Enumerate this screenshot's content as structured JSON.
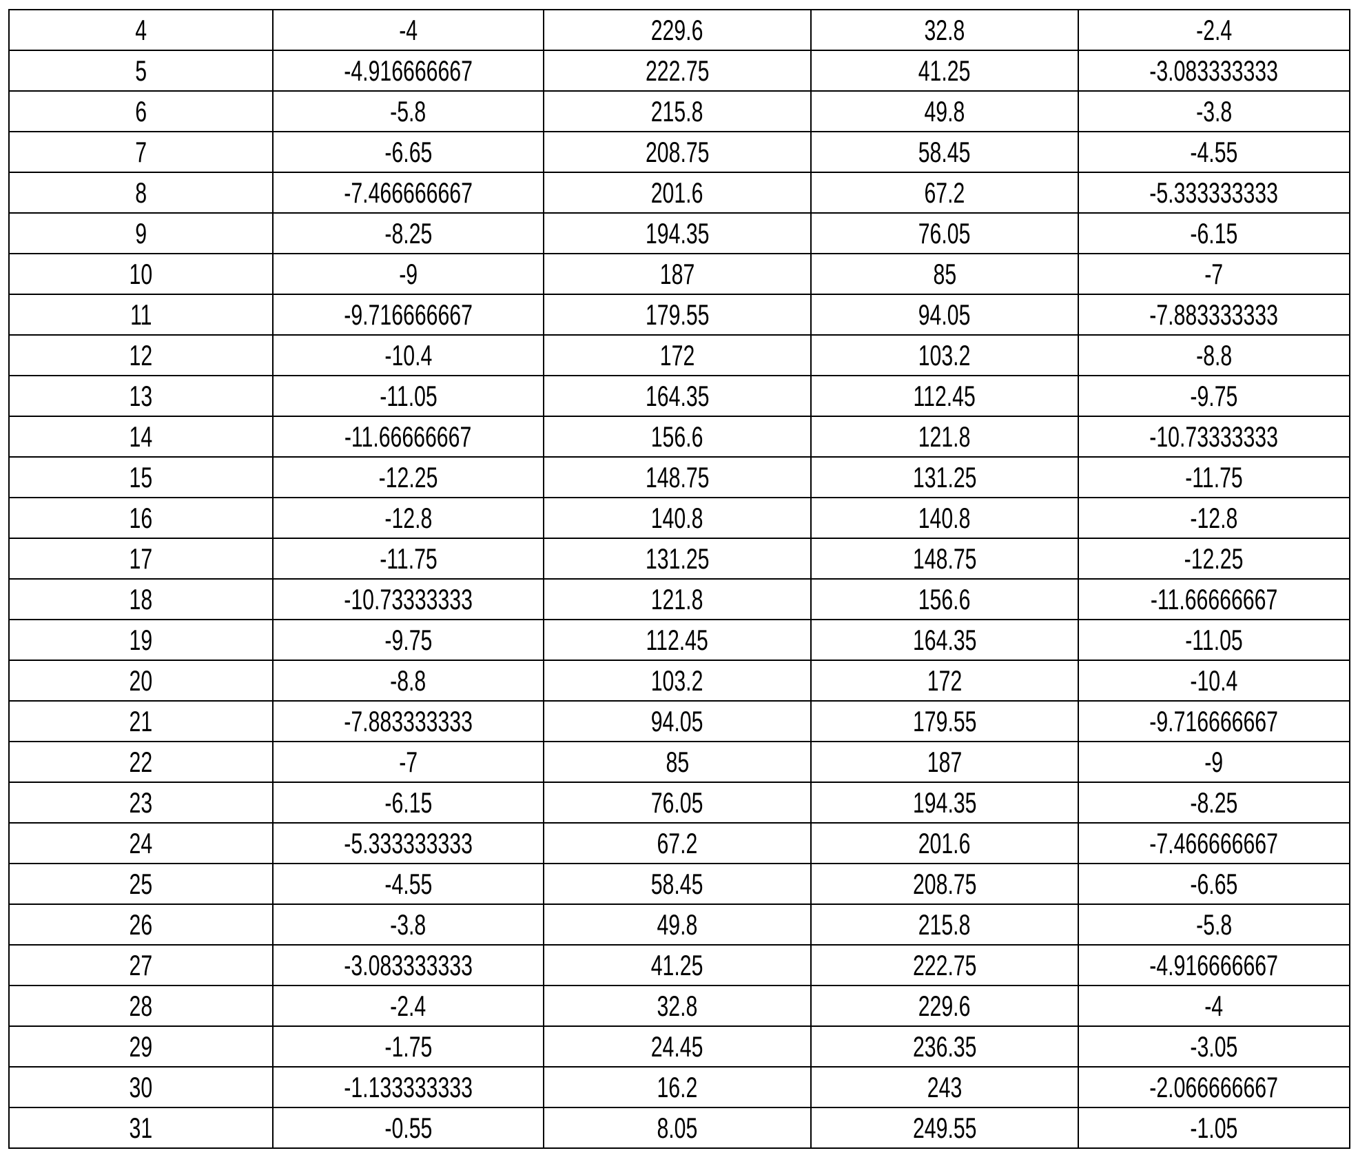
{
  "table": {
    "rows": [
      [
        "4",
        "-4",
        "229.6",
        "32.8",
        "-2.4"
      ],
      [
        "5",
        "-4.916666667",
        "222.75",
        "41.25",
        "-3.083333333"
      ],
      [
        "6",
        "-5.8",
        "215.8",
        "49.8",
        "-3.8"
      ],
      [
        "7",
        "-6.65",
        "208.75",
        "58.45",
        "-4.55"
      ],
      [
        "8",
        "-7.466666667",
        "201.6",
        "67.2",
        "-5.333333333"
      ],
      [
        "9",
        "-8.25",
        "194.35",
        "76.05",
        "-6.15"
      ],
      [
        "10",
        "-9",
        "187",
        "85",
        "-7"
      ],
      [
        "11",
        "-9.716666667",
        "179.55",
        "94.05",
        "-7.883333333"
      ],
      [
        "12",
        "-10.4",
        "172",
        "103.2",
        "-8.8"
      ],
      [
        "13",
        "-11.05",
        "164.35",
        "112.45",
        "-9.75"
      ],
      [
        "14",
        "-11.66666667",
        "156.6",
        "121.8",
        "-10.73333333"
      ],
      [
        "15",
        "-12.25",
        "148.75",
        "131.25",
        "-11.75"
      ],
      [
        "16",
        "-12.8",
        "140.8",
        "140.8",
        "-12.8"
      ],
      [
        "17",
        "-11.75",
        "131.25",
        "148.75",
        "-12.25"
      ],
      [
        "18",
        "-10.73333333",
        "121.8",
        "156.6",
        "-11.66666667"
      ],
      [
        "19",
        "-9.75",
        "112.45",
        "164.35",
        "-11.05"
      ],
      [
        "20",
        "-8.8",
        "103.2",
        "172",
        "-10.4"
      ],
      [
        "21",
        "-7.883333333",
        "94.05",
        "179.55",
        "-9.716666667"
      ],
      [
        "22",
        "-7",
        "85",
        "187",
        "-9"
      ],
      [
        "23",
        "-6.15",
        "76.05",
        "194.35",
        "-8.25"
      ],
      [
        "24",
        "-5.333333333",
        "67.2",
        "201.6",
        "-7.466666667"
      ],
      [
        "25",
        "-4.55",
        "58.45",
        "208.75",
        "-6.65"
      ],
      [
        "26",
        "-3.8",
        "49.8",
        "215.8",
        "-5.8"
      ],
      [
        "27",
        "-3.083333333",
        "41.25",
        "222.75",
        "-4.916666667"
      ],
      [
        "28",
        "-2.4",
        "32.8",
        "229.6",
        "-4"
      ],
      [
        "29",
        "-1.75",
        "24.45",
        "236.35",
        "-3.05"
      ],
      [
        "30",
        "-1.133333333",
        "16.2",
        "243",
        "-2.066666667"
      ],
      [
        "31",
        "-0.55",
        "8.05",
        "249.55",
        "-1.05"
      ]
    ]
  }
}
